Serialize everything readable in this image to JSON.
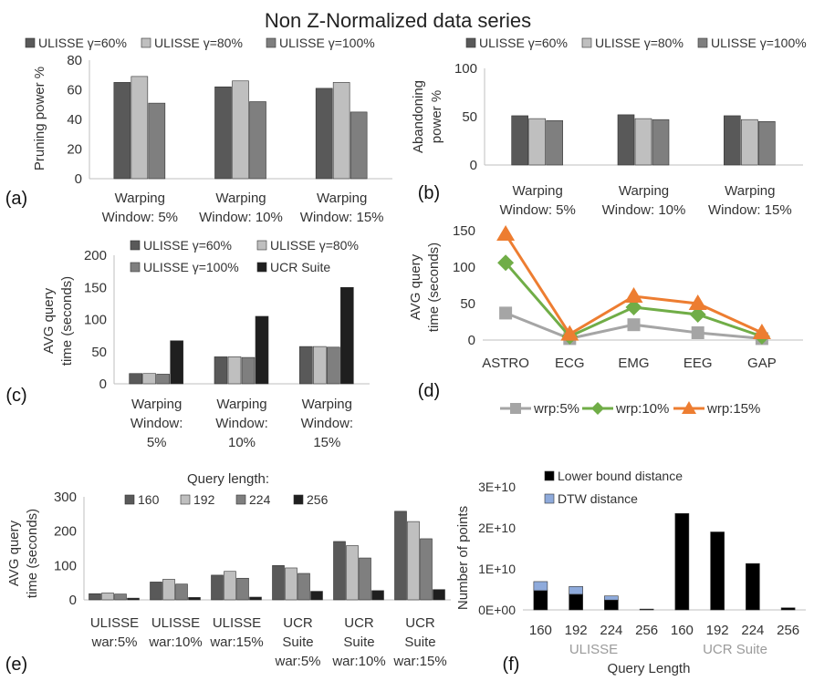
{
  "title": "Non Z-Normalized data series",
  "colors": {
    "u60": "#595959",
    "u80": "#bfbfbf",
    "u100": "#7f7f7f",
    "ucr": "#1f1f1f",
    "q160": "#595959",
    "q192": "#bfbfbf",
    "q224": "#7f7f7f",
    "q256": "#1f1f1f",
    "wrp5": "#a5a5a5",
    "wrp10": "#70ad47",
    "wrp15": "#ed7d31",
    "lower_bound": "#000000",
    "dtw": "#8eaadb"
  },
  "chart_data": [
    {
      "id": "a",
      "panel_label": "(a)",
      "type": "bar",
      "ylabel": "Pruning power %",
      "ylim": [
        0,
        80
      ],
      "yticks": [
        "0",
        "20",
        "40",
        "60",
        "80"
      ],
      "categories": [
        [
          "Warping",
          "Window: 5%"
        ],
        [
          "Warping",
          "Window: 10%"
        ],
        [
          "Warping",
          "Window: 15%"
        ]
      ],
      "series": [
        {
          "name": "ULISSE γ=60%",
          "values": [
            65,
            62,
            61
          ]
        },
        {
          "name": "ULISSE γ=80%",
          "values": [
            69,
            66,
            65
          ]
        },
        {
          "name": "ULISSE γ=100%",
          "values": [
            51,
            52,
            45
          ]
        }
      ],
      "legend": "top"
    },
    {
      "id": "b",
      "panel_label": "(b)",
      "type": "bar",
      "ylabel": [
        "Abandoning",
        "power %"
      ],
      "ylim": [
        0,
        100
      ],
      "yticks": [
        "0",
        "50",
        "100"
      ],
      "categories": [
        [
          "Warping",
          "Window: 5%"
        ],
        [
          "Warping",
          "Window: 10%"
        ],
        [
          "Warping",
          "Window: 15%"
        ]
      ],
      "series": [
        {
          "name": "ULISSE γ=60%",
          "values": [
            51,
            52,
            51
          ]
        },
        {
          "name": "ULISSE γ=80%",
          "values": [
            48,
            48,
            47
          ]
        },
        {
          "name": "ULISSE γ=100%",
          "values": [
            46,
            47,
            45
          ]
        }
      ],
      "legend": "top"
    },
    {
      "id": "c",
      "panel_label": "(c)",
      "type": "bar",
      "ylabel": [
        "AVG query",
        "time (seconds)"
      ],
      "ylim": [
        0,
        200
      ],
      "yticks": [
        "0",
        "50",
        "100",
        "150",
        "200"
      ],
      "categories": [
        [
          "Warping",
          "Window:",
          "5%"
        ],
        [
          "Warping",
          "Window:",
          "10%"
        ],
        [
          "Warping",
          "Window:",
          "15%"
        ]
      ],
      "series": [
        {
          "name": "ULISSE γ=60%",
          "values": [
            16,
            42,
            58
          ]
        },
        {
          "name": "ULISSE γ=80%",
          "values": [
            16,
            42,
            58
          ]
        },
        {
          "name": "ULISSE γ=100%",
          "values": [
            15,
            41,
            57
          ]
        },
        {
          "name": "UCR Suite",
          "values": [
            67,
            105,
            150
          ]
        }
      ],
      "legend": "top"
    },
    {
      "id": "d",
      "panel_label": "(d)",
      "type": "line",
      "ylabel": [
        "AVG query",
        "time (seconds)"
      ],
      "ylim": [
        0,
        150
      ],
      "yticks": [
        "0",
        "50",
        "100",
        "150"
      ],
      "categories": [
        "ASTRO",
        "ECG",
        "EMG",
        "EEG",
        "GAP"
      ],
      "series": [
        {
          "name": "wrp:5%",
          "values": [
            37,
            2,
            21,
            10,
            2
          ]
        },
        {
          "name": "wrp:10%",
          "values": [
            106,
            5,
            45,
            35,
            5
          ]
        },
        {
          "name": "wrp:15%",
          "values": [
            145,
            8,
            60,
            50,
            10
          ]
        }
      ],
      "legend": "bottom"
    },
    {
      "id": "e",
      "panel_label": "(e)",
      "type": "bar",
      "legend_title": "Query length:",
      "ylabel": [
        "AVG query",
        "time (seconds)"
      ],
      "ylim": [
        0,
        300
      ],
      "yticks": [
        "0",
        "100",
        "200",
        "300"
      ],
      "categories": [
        [
          "ULISSE",
          "war:5%"
        ],
        [
          "ULISSE",
          "war:10%"
        ],
        [
          "ULISSE",
          "war:15%"
        ],
        [
          "UCR",
          "Suite",
          "war:5%"
        ],
        [
          "UCR",
          "Suite",
          "war:10%"
        ],
        [
          "UCR",
          "Suite",
          "war:15%"
        ]
      ],
      "series": [
        {
          "name": "160",
          "values": [
            18,
            52,
            72,
            100,
            170,
            258
          ]
        },
        {
          "name": "192",
          "values": [
            20,
            60,
            83,
            93,
            158,
            228
          ]
        },
        {
          "name": "224",
          "values": [
            17,
            46,
            63,
            77,
            122,
            178
          ]
        },
        {
          "name": "256",
          "values": [
            5,
            7,
            8,
            25,
            27,
            30
          ]
        }
      ],
      "legend": "top"
    },
    {
      "id": "f",
      "panel_label": "(f)",
      "type": "bar",
      "stacked": true,
      "ylabel": "Number of points",
      "xlabel": "Query Length",
      "ylim": [
        0,
        30000000000
      ],
      "yticks": [
        "0E+00",
        "1E+10",
        "2E+10",
        "3E+10"
      ],
      "categories": [
        "160",
        "192",
        "224",
        "256",
        "160",
        "192",
        "224",
        "256"
      ],
      "groups": [
        "ULISSE",
        "UCR Suite"
      ],
      "series": [
        {
          "name": "Lower bound distance",
          "values": [
            4700000000,
            3800000000,
            2400000000,
            200000000,
            23500000000,
            19000000000,
            11300000000,
            500000000
          ]
        },
        {
          "name": "DTW distance",
          "values": [
            2200000000,
            1900000000,
            1000000000,
            0,
            0,
            0,
            0,
            0
          ]
        }
      ],
      "legend": "top-left"
    }
  ]
}
